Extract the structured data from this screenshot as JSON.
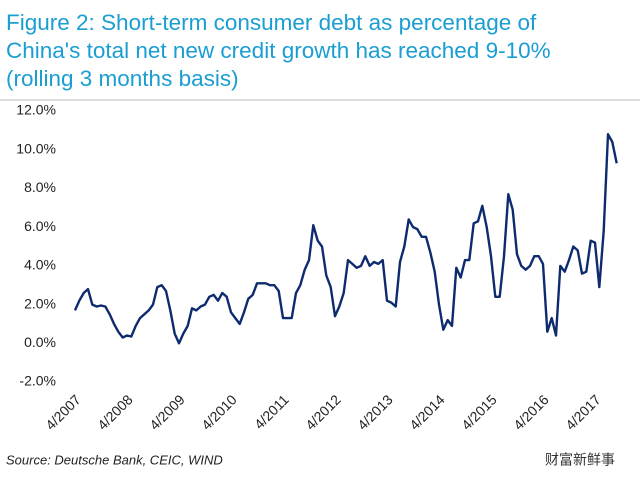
{
  "chart_data": {
    "type": "line",
    "title": [
      "Figure 2: Short-term consumer debt as percentage of",
      "China's total net new credit growth has reached 9-10%",
      "(rolling 3 months basis)"
    ],
    "source": "Source: Deutsche Bank, CEIC, WIND",
    "watermark": "财富新鲜事",
    "categories": [
      "4/2007",
      null,
      null,
      null,
      null,
      null,
      null,
      null,
      null,
      null,
      null,
      null,
      "4/2008",
      null,
      null,
      null,
      null,
      null,
      null,
      null,
      null,
      null,
      null,
      null,
      "4/2009",
      null,
      null,
      null,
      null,
      null,
      null,
      null,
      null,
      null,
      null,
      null,
      "4/2010",
      null,
      null,
      null,
      null,
      null,
      null,
      null,
      null,
      null,
      null,
      null,
      "4/2011",
      null,
      null,
      null,
      null,
      null,
      null,
      null,
      null,
      null,
      null,
      null,
      "4/2012",
      null,
      null,
      null,
      null,
      null,
      null,
      null,
      null,
      null,
      null,
      null,
      "4/2013",
      null,
      null,
      null,
      null,
      null,
      null,
      null,
      null,
      null,
      null,
      null,
      "4/2014",
      null,
      null,
      null,
      null,
      null,
      null,
      null,
      null,
      null,
      null,
      null,
      "4/2015",
      null,
      null,
      null,
      null,
      null,
      null,
      null,
      null,
      null,
      null,
      null,
      "4/2016",
      null,
      null,
      null,
      null,
      null,
      null,
      null,
      null,
      null,
      null,
      null,
      "4/2017",
      null,
      null,
      null,
      null,
      null
    ],
    "series": [
      {
        "color": "#0d2b6e",
        "values": [
          1.7,
          2.2,
          2.6,
          2.8,
          2.0,
          1.9,
          1.95,
          1.9,
          1.5,
          1.0,
          0.6,
          0.3,
          0.4,
          0.35,
          0.9,
          1.3,
          1.5,
          1.7,
          2.0,
          2.9,
          3.0,
          2.7,
          1.7,
          0.5,
          0.0,
          0.5,
          0.9,
          1.8,
          1.7,
          1.9,
          2.0,
          2.4,
          2.5,
          2.2,
          2.6,
          2.4,
          1.6,
          1.3,
          1.0,
          1.6,
          2.3,
          2.5,
          3.1,
          3.1,
          3.1,
          3.0,
          3.0,
          2.7,
          1.3,
          1.3,
          1.3,
          2.6,
          3.0,
          3.8,
          4.3,
          6.1,
          5.3,
          5.0,
          3.5,
          2.9,
          1.4,
          1.9,
          2.6,
          4.3,
          4.1,
          3.9,
          4.0,
          4.5,
          4.0,
          4.2,
          4.1,
          4.3,
          2.2,
          2.1,
          1.9,
          4.2,
          5.0,
          6.4,
          6.0,
          5.9,
          5.5,
          5.5,
          4.7,
          3.7,
          2.0,
          0.7,
          1.2,
          0.9,
          3.9,
          3.4,
          4.3,
          4.3,
          6.2,
          6.3,
          7.1,
          6.0,
          4.5,
          2.4,
          2.4,
          4.5,
          7.7,
          6.9,
          4.6,
          4.0,
          3.8,
          4.0,
          4.5,
          4.5,
          4.1,
          0.6,
          1.3,
          0.4,
          4.0,
          3.7,
          4.3,
          5.0,
          4.8,
          3.6,
          3.7,
          5.3,
          5.2,
          2.9,
          5.8,
          10.8,
          10.4,
          9.3
        ]
      }
    ],
    "ylim": [
      -2,
      12
    ],
    "yticks": [
      {
        "value": -2,
        "label": "-2.0%"
      },
      {
        "value": 0,
        "label": "0.0%"
      },
      {
        "value": 2,
        "label": "2.0%"
      },
      {
        "value": 4,
        "label": "4.0%"
      },
      {
        "value": 6,
        "label": "6.0%"
      },
      {
        "value": 8,
        "label": "8.0%"
      },
      {
        "value": 10,
        "label": "10.0%"
      },
      {
        "value": 12,
        "label": "12.0%"
      }
    ],
    "grid": false
  }
}
